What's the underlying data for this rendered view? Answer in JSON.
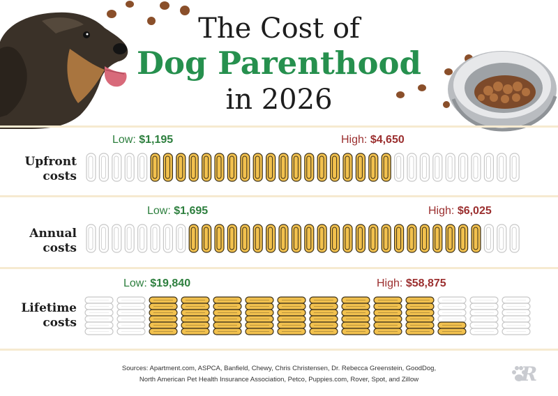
{
  "title": {
    "line1": "The Cost of",
    "line2": "Dog Parenthood",
    "line3": "in 2026"
  },
  "colors": {
    "title_accent": "#26904e",
    "low_text": "#2d7f3e",
    "high_text": "#9b2f2f",
    "coin_fill": "#f2c14e",
    "coin_empty": "#ffffff",
    "band_line": "#f6ead0"
  },
  "chart_data": [
    {
      "type": "bar",
      "category": "Upfront costs",
      "label_line1": "Upfront",
      "label_line2": "costs",
      "low": {
        "label": "Low:",
        "value": 1195,
        "display": "$1,195"
      },
      "high": {
        "label": "High:",
        "value": 4650,
        "display": "$4,650"
      },
      "scale": {
        "total_units": 34,
        "filled_from": 5,
        "filled_to": 23
      }
    },
    {
      "type": "bar",
      "category": "Annual costs",
      "label_line1": "Annual",
      "label_line2": "costs",
      "low": {
        "label": "Low:",
        "value": 1695,
        "display": "$1,695"
      },
      "high": {
        "label": "High:",
        "value": 6025,
        "display": "$6,025"
      },
      "scale": {
        "total_units": 34,
        "filled_from": 8,
        "filled_to": 30
      }
    },
    {
      "type": "bar",
      "category": "Lifetime costs",
      "label_line1": "Lifetime",
      "label_line2": "costs",
      "low": {
        "label": "Low:",
        "value": 19840,
        "display": "$19,840"
      },
      "high": {
        "label": "High:",
        "value": 58875,
        "display": "$58,875"
      },
      "scale": {
        "total_stacks": 14,
        "filled_from": 3,
        "filled_to": 11,
        "partial_last_fraction": 0.4
      }
    }
  ],
  "sources": {
    "line1": "Sources: Apartment.com, ASPCA, Banfield, Chewy, Chris Christensen, Dr. Rebecca Greenstein, GoodDog,",
    "line2": "North American Pet Health Insurance Association, Petco, Puppies.com, Rover, Spot, and Zillow"
  },
  "logo": {
    "letter": "R",
    "icon": "paw-icon"
  },
  "illustrations": {
    "left": "dog-icon",
    "right": "food-bowl-icon",
    "scatter": "kibble-icon"
  }
}
